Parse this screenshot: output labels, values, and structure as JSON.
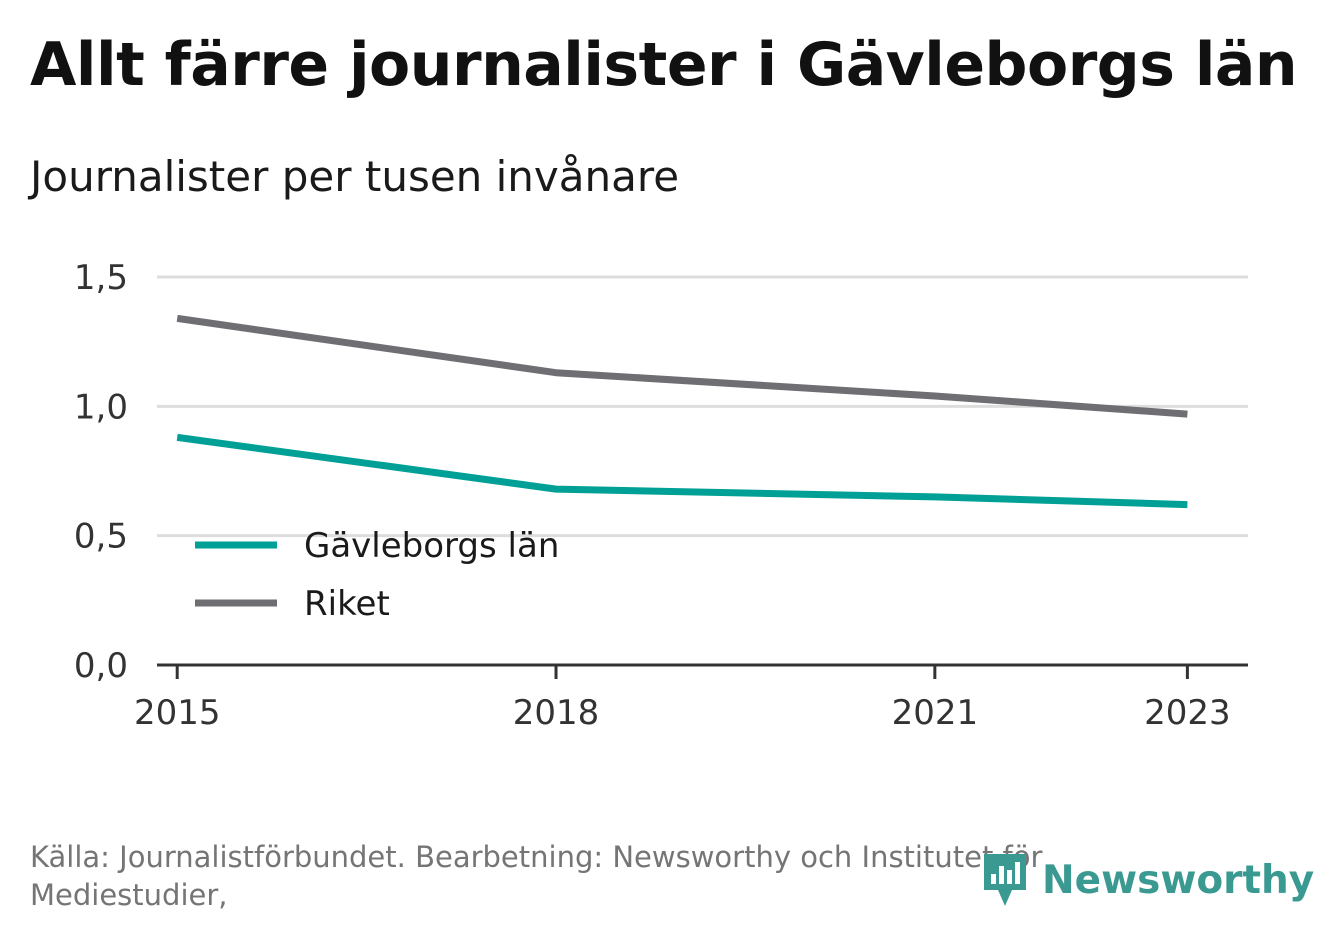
{
  "header": {
    "title": "Allt färre journalister i Gävleborgs län",
    "subtitle": "Journalister per tusen invånare"
  },
  "chart_data": {
    "type": "line",
    "x": [
      2015,
      2018,
      2021,
      2023
    ],
    "x_ticks": [
      "2015",
      "2018",
      "2021",
      "2023"
    ],
    "ylim": [
      0,
      1.5
    ],
    "y_ticks": [
      "0,0",
      "0,5",
      "1,0",
      "1,5"
    ],
    "grid": true,
    "legend_position": "bottom-left",
    "series": [
      {
        "name": "Gävleborgs län",
        "color": "#00a096",
        "values": [
          0.88,
          0.68,
          0.65,
          0.62
        ]
      },
      {
        "name": "Riket",
        "color": "#6e6e73",
        "values": [
          1.34,
          1.13,
          1.04,
          0.97
        ]
      }
    ]
  },
  "footer": {
    "source": "Källa: Journalistförbundet. Bearbetning: Newsworthy och Institutet för Mediestudier,",
    "logo_text": "Newsworthy",
    "logo_icon": "newsworthy-logo-icon"
  }
}
